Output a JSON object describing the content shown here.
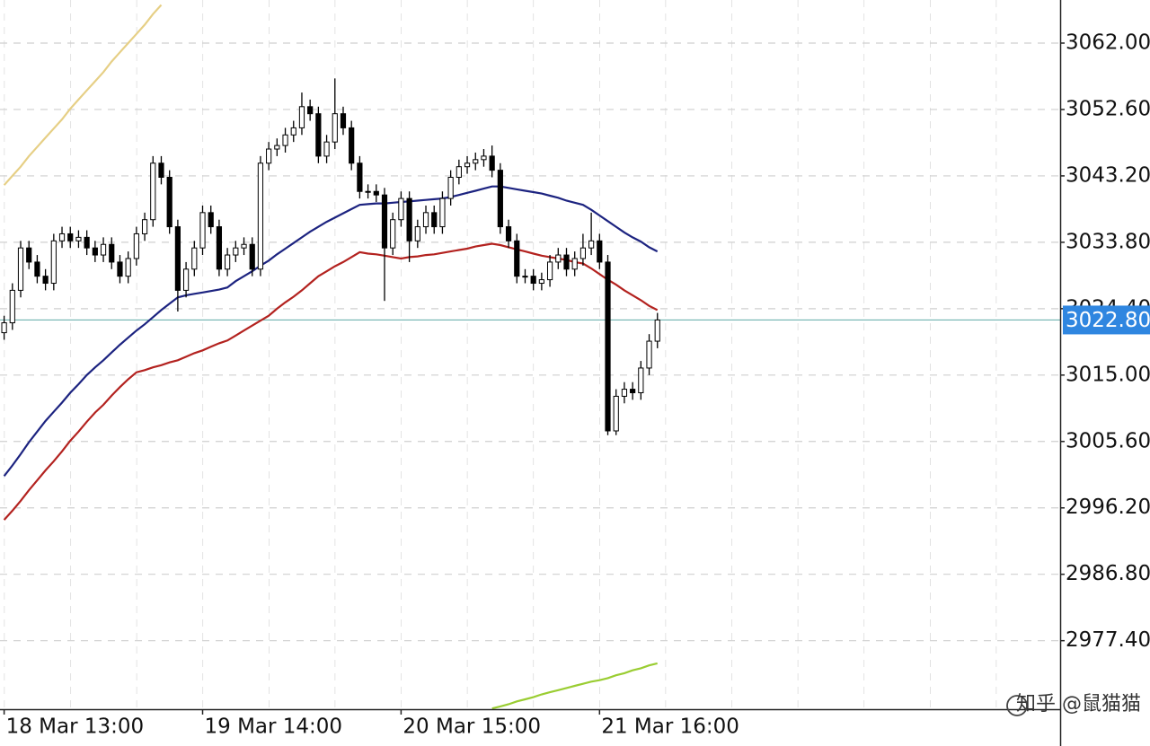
{
  "chart_data": {
    "type": "candlestick",
    "xlim": [
      -0.5,
      127.7
    ],
    "ylim": [
      2967.7,
      3068.1
    ],
    "xticks": [
      {
        "value": 0,
        "label": "18 Mar 13:00"
      },
      {
        "value": 24,
        "label": "19 Mar 14:00"
      },
      {
        "value": 48,
        "label": "20 Mar 15:00"
      },
      {
        "value": 72,
        "label": "21 Mar 16:00"
      }
    ],
    "yticks": [
      {
        "value": 3062,
        "label": "3062.00"
      },
      {
        "value": 3052.6,
        "label": "3052.60"
      },
      {
        "value": 3043.2,
        "label": "3043.20"
      },
      {
        "value": 3033.8,
        "label": "3033.80"
      },
      {
        "value": 3024.4,
        "label": "3024.40"
      },
      {
        "value": 3015,
        "label": "3015.00"
      },
      {
        "value": 3005.6,
        "label": "3005.60"
      },
      {
        "value": 2996.2,
        "label": "2996.20"
      },
      {
        "value": 2986.8,
        "label": "2986.80"
      },
      {
        "value": 2977.4,
        "label": "2977.40"
      }
    ],
    "grid": true,
    "last_price": {
      "value": 3022.8,
      "label": "3022.80",
      "color": "#2f86e0",
      "line_color": "#6fb3b0"
    },
    "up_color": "#ffffff",
    "down_color": "#000000",
    "open": [
      3021,
      3022.4,
      3027,
      3033,
      3031,
      3029,
      3028,
      3034,
      3035,
      3034,
      3034.5,
      3033,
      3032,
      3033.5,
      3031,
      3029,
      3031.5,
      3035,
      3037,
      3045,
      3043,
      3036,
      3027,
      3030,
      3033,
      3038,
      3036,
      3030,
      3032,
      3033,
      3033.5,
      3030,
      3045,
      3047,
      3047.5,
      3049,
      3050,
      3053,
      3052,
      3046,
      3048,
      3052,
      3050,
      3045,
      3041,
      3041,
      3040.5,
      3033,
      3037,
      3040,
      3034,
      3036,
      3038,
      3036,
      3040,
      3043,
      3044.5,
      3045,
      3045.5,
      3046,
      3044,
      3036,
      3034,
      3029,
      3029,
      3028,
      3028.5,
      3031,
      3032,
      3030,
      3031.5,
      3033,
      3034,
      3031,
      3007.1,
      3012,
      3013,
      3012.5,
      3016,
      3019.8
    ],
    "high": [
      3023.4,
      3028,
      3034,
      3034,
      3032,
      3030,
      3035,
      3036,
      3036,
      3035.5,
      3035.5,
      3034,
      3034.5,
      3034.5,
      3032,
      3032.5,
      3036,
      3038,
      3046,
      3046,
      3044,
      3037,
      3031,
      3034,
      3039,
      3039,
      3037,
      3033,
      3034,
      3034.5,
      3034.5,
      3046,
      3048,
      3048.5,
      3050,
      3051,
      3055,
      3054,
      3053,
      3049,
      3057,
      3053,
      3051,
      3046,
      3042,
      3042,
      3041.5,
      3038,
      3041,
      3041,
      3037,
      3039,
      3039,
      3041,
      3044,
      3045.5,
      3046,
      3046.5,
      3047,
      3047.5,
      3045,
      3037,
      3035,
      3030,
      3030,
      3029.5,
      3032,
      3033,
      3033,
      3032.5,
      3035,
      3038,
      3035,
      3032,
      3013,
      3014,
      3014,
      3017,
      3020.8,
      3023.8
    ],
    "low": [
      3020,
      3021.4,
      3026,
      3030,
      3028,
      3027,
      3027,
      3033,
      3033,
      3033,
      3032,
      3031,
      3031,
      3030,
      3028,
      3028,
      3030.5,
      3034,
      3036,
      3042,
      3035,
      3024,
      3026,
      3029,
      3032,
      3035,
      3029,
      3029,
      3031,
      3032,
      3029,
      3029,
      3044,
      3046,
      3046.5,
      3048,
      3049,
      3051,
      3045,
      3045,
      3047,
      3049,
      3044,
      3040,
      3040,
      3039.5,
      3025.5,
      3032,
      3036,
      3031,
      3033,
      3035,
      3035,
      3035,
      3039,
      3042,
      3043.5,
      3044,
      3044.5,
      3043,
      3035,
      3033,
      3028,
      3028,
      3027,
      3027,
      3027.5,
      3030,
      3029,
      3029,
      3030.5,
      3032,
      3030,
      3006.5,
      3006.5,
      3011,
      3011.5,
      3011.5,
      3015,
      3018.8
    ],
    "close": [
      3022.4,
      3027,
      3033,
      3031,
      3029,
      3028,
      3034,
      3035,
      3034,
      3034.5,
      3033,
      3032,
      3033.5,
      3031,
      3029,
      3031.5,
      3035,
      3037,
      3045,
      3043,
      3036,
      3027,
      3030,
      3033,
      3038,
      3036,
      3030,
      3032,
      3033,
      3033.5,
      3030,
      3045,
      3047,
      3047.5,
      3049,
      3050,
      3053,
      3052,
      3046,
      3048,
      3052,
      3050,
      3045,
      3041,
      3041,
      3040.5,
      3033,
      3037,
      3040,
      3034,
      3036,
      3038,
      3036,
      3040,
      3043,
      3044.5,
      3045,
      3045.5,
      3046,
      3044,
      3036,
      3034,
      3029,
      3029,
      3028,
      3028.5,
      3031,
      3032,
      3030,
      3031.5,
      3033,
      3034,
      3031,
      3007.1,
      3012,
      3013,
      3012.5,
      3016,
      3019.8,
      3022.8
    ],
    "series": [
      {
        "color": "#1c2380",
        "values": [
          3000.7,
          3002.2,
          3003.8,
          3005.5,
          3007.0,
          3008.5,
          3009.8,
          3011.1,
          3012.5,
          3013.7,
          3015.0,
          3016.1,
          3017.1,
          3018.2,
          3019.3,
          3020.3,
          3021.3,
          3022.2,
          3023.2,
          3024.2,
          3025.1,
          3026.0,
          3026.3,
          3026.5,
          3026.7,
          3026.9,
          3027.1,
          3027.4,
          3028.3,
          3029.0,
          3029.7,
          3030.5,
          3031.2,
          3032.1,
          3032.9,
          3033.7,
          3034.5,
          3035.3,
          3036.0,
          3036.7,
          3037.3,
          3037.9,
          3038.5,
          3039.1,
          3039.2,
          3039.3,
          3039.3,
          3039.4,
          3039.5,
          3039.6,
          3039.7,
          3039.8,
          3039.9,
          3040.0,
          3040.2,
          3040.5,
          3040.8,
          3041.1,
          3041.4,
          3041.7,
          3041.7,
          3041.5,
          3041.3,
          3041.1,
          3040.9,
          3040.7,
          3040.4,
          3040.1,
          3039.7,
          3039.4,
          3039.1,
          3038.4,
          3037.6,
          3036.8,
          3036.0,
          3035.2,
          3034.5,
          3033.9,
          3033.1,
          3032.5
        ]
      },
      {
        "color": "#b3221f",
        "values": [
          2994.5,
          2995.8,
          2997.2,
          2998.7,
          3000.1,
          3001.5,
          3002.8,
          3004.2,
          3005.7,
          3007.0,
          3008.4,
          3009.7,
          3010.8,
          3012.1,
          3013.3,
          3014.4,
          3015.4,
          3015.7,
          3016.1,
          3016.4,
          3016.8,
          3017.1,
          3017.6,
          3018.1,
          3018.5,
          3019.0,
          3019.5,
          3019.9,
          3020.6,
          3021.3,
          3022.0,
          3022.7,
          3023.4,
          3024.4,
          3025.3,
          3026.1,
          3027.0,
          3028.0,
          3029.0,
          3029.7,
          3030.4,
          3031.0,
          3031.7,
          3032.4,
          3032.2,
          3032.1,
          3031.9,
          3031.7,
          3031.5,
          3031.7,
          3031.8,
          3032.0,
          3032.1,
          3032.3,
          3032.5,
          3032.7,
          3032.9,
          3033.2,
          3033.4,
          3033.6,
          3033.4,
          3033.1,
          3032.8,
          3032.5,
          3032.2,
          3031.9,
          3031.7,
          3031.5,
          3031.3,
          3031.0,
          3030.8,
          3030.1,
          3029.3,
          3028.5,
          3027.8,
          3027.0,
          3026.3,
          3025.6,
          3024.8,
          3024.2
        ]
      },
      {
        "color": "#e6cf85",
        "values": [
          3041.9,
          3043.2,
          3044.5,
          3046.0,
          3047.3,
          3048.6,
          3049.9,
          3051.2,
          3052.7,
          3054.0,
          3055.3,
          3056.6,
          3057.9,
          3059.4,
          3060.7,
          3062.0,
          3063.3,
          3064.6,
          3066.1,
          3067.4,
          null,
          null,
          null,
          null,
          null,
          null,
          null,
          null,
          null,
          null,
          null,
          null,
          null,
          null,
          null,
          null,
          null,
          null,
          null,
          null,
          null,
          null,
          null,
          null,
          null,
          null,
          null,
          null,
          null,
          null,
          null,
          null,
          null,
          null,
          null,
          null,
          null,
          null,
          null,
          null,
          null,
          null,
          null,
          null,
          null,
          null,
          null,
          null,
          null,
          null,
          null,
          null,
          null,
          null,
          null,
          null,
          null,
          null,
          null,
          null
        ]
      },
      {
        "color": "#9acd32",
        "values": [
          null,
          null,
          null,
          null,
          null,
          null,
          null,
          null,
          null,
          null,
          null,
          null,
          null,
          null,
          null,
          null,
          null,
          null,
          null,
          null,
          null,
          null,
          null,
          null,
          null,
          null,
          null,
          null,
          null,
          null,
          null,
          null,
          null,
          null,
          null,
          null,
          null,
          null,
          null,
          null,
          null,
          null,
          null,
          null,
          null,
          null,
          null,
          null,
          null,
          null,
          null,
          null,
          null,
          null,
          null,
          null,
          null,
          null,
          null,
          2967.8,
          2968.1,
          2968.4,
          2968.8,
          2969.1,
          2969.4,
          2969.8,
          2970.1,
          2970.4,
          2970.7,
          2971.0,
          2971.3,
          2971.6,
          2971.8,
          2972.1,
          2972.5,
          2972.8,
          2973.2,
          2973.5,
          2973.9,
          2974.2
        ]
      }
    ],
    "watermark": "知乎 @鼠猫猫"
  }
}
